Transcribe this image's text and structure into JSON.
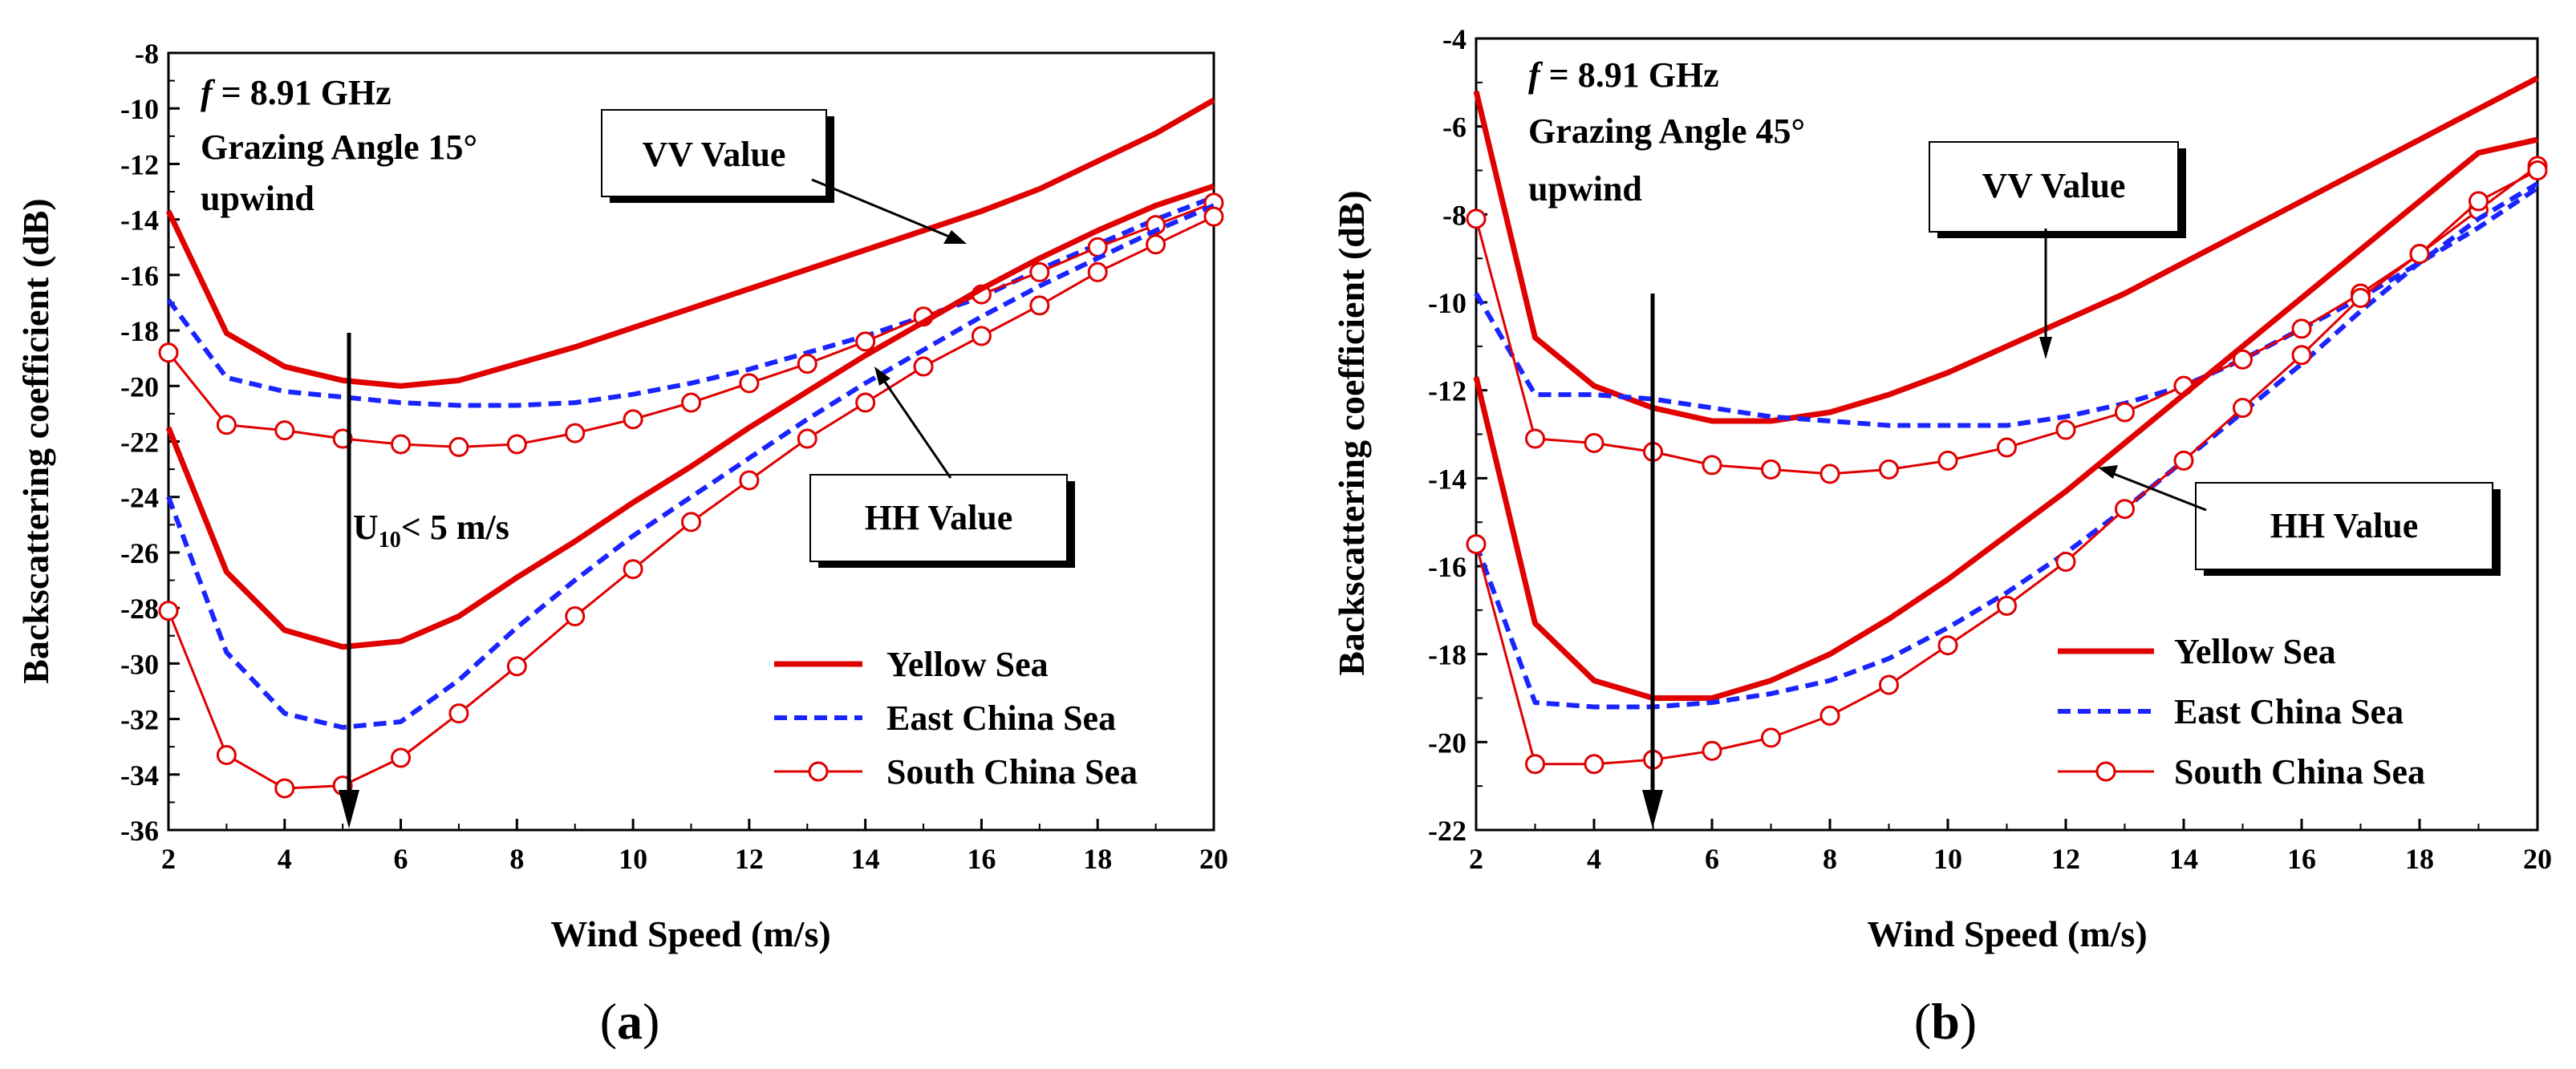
{
  "chart_data": [
    {
      "type": "line",
      "caption_prefix": "(",
      "caption_letter": "a",
      "caption_suffix": ")",
      "xlabel": "Wind Speed (m/s)",
      "ylabel": "Backscattering coefficient (dB)",
      "xlim": [
        2,
        20
      ],
      "ylim": [
        -36,
        -8
      ],
      "xticks": [
        2,
        4,
        6,
        8,
        10,
        12,
        14,
        16,
        18,
        20
      ],
      "yticks": [
        -8,
        -10,
        -12,
        -14,
        -16,
        -18,
        -20,
        -22,
        -24,
        -26,
        -28,
        -30,
        -32,
        -34,
        -36
      ],
      "annotations": {
        "freq_var": "f",
        "freq_text": " = 8.91 GHz",
        "angle": "Grazing Angle 15°",
        "dir": "upwind",
        "vv": "VV Value",
        "hh": "HH Value",
        "u_main": "U",
        "u_sub": "10",
        "u_rest": "< 5 m/s"
      },
      "legend": [
        "Yellow Sea",
        "East China Sea",
        "South China Sea"
      ],
      "x": [
        2,
        3,
        4,
        5,
        6,
        7,
        8,
        9,
        10,
        11,
        12,
        13,
        14,
        15,
        16,
        17,
        18,
        19,
        20
      ],
      "series": [
        {
          "name": "Yellow Sea VV",
          "style": "solid",
          "values": [
            -13.7,
            -18.1,
            -19.3,
            -19.8,
            -20.0,
            -19.8,
            -19.2,
            -18.6,
            -17.9,
            -17.2,
            -16.5,
            -15.8,
            -15.1,
            -14.4,
            -13.7,
            -12.9,
            -11.9,
            -10.9,
            -9.7
          ]
        },
        {
          "name": "East China Sea VV",
          "style": "dash",
          "values": [
            -16.9,
            -19.7,
            -20.2,
            -20.4,
            -20.6,
            -20.7,
            -20.7,
            -20.6,
            -20.3,
            -19.9,
            -19.4,
            -18.8,
            -18.2,
            -17.5,
            -16.8,
            -15.8,
            -14.9,
            -14.0,
            -13.2
          ]
        },
        {
          "name": "South China Sea VV",
          "style": "marker",
          "values": [
            -18.8,
            -21.4,
            -21.6,
            -21.9,
            -22.1,
            -22.2,
            -22.1,
            -21.7,
            -21.2,
            -20.6,
            -19.9,
            -19.2,
            -18.4,
            -17.5,
            -16.7,
            -15.9,
            -15.0,
            -14.2,
            -13.4
          ]
        },
        {
          "name": "Yellow Sea HH",
          "style": "solid",
          "values": [
            -21.5,
            -26.7,
            -28.8,
            -29.4,
            -29.2,
            -28.3,
            -26.9,
            -25.6,
            -24.2,
            -22.9,
            -21.5,
            -20.2,
            -18.9,
            -17.7,
            -16.5,
            -15.4,
            -14.4,
            -13.5,
            -12.8
          ]
        },
        {
          "name": "East China Sea HH",
          "style": "dash",
          "values": [
            -24.0,
            -29.6,
            -31.8,
            -32.3,
            -32.1,
            -30.6,
            -28.7,
            -27.0,
            -25.4,
            -24.0,
            -22.6,
            -21.2,
            -19.9,
            -18.7,
            -17.5,
            -16.4,
            -15.4,
            -14.4,
            -13.5
          ]
        },
        {
          "name": "South China Sea HH",
          "style": "marker",
          "values": [
            -28.1,
            -33.3,
            -34.5,
            -34.4,
            -33.4,
            -31.8,
            -30.1,
            -28.3,
            -26.6,
            -24.9,
            -23.4,
            -21.9,
            -20.6,
            -19.3,
            -18.2,
            -17.1,
            -15.9,
            -14.9,
            -13.9
          ]
        }
      ]
    },
    {
      "type": "line",
      "caption_prefix": "(",
      "caption_letter": "b",
      "caption_suffix": ")",
      "xlabel": "Wind Speed (m/s)",
      "ylabel": "Backscattering coefficient (dB)",
      "xlim": [
        2,
        20
      ],
      "ylim": [
        -22,
        -4
      ],
      "xticks": [
        2,
        4,
        6,
        8,
        10,
        12,
        14,
        16,
        18,
        20
      ],
      "yticks": [
        -4,
        -6,
        -8,
        -10,
        -12,
        -14,
        -16,
        -18,
        -20,
        -22
      ],
      "annotations": {
        "freq_var": "f",
        "freq_text": " = 8.91 GHz",
        "angle": "Grazing Angle 45°",
        "dir": "upwind",
        "vv": "VV Value",
        "hh": "HH Value"
      },
      "legend": [
        "Yellow Sea",
        "East China Sea",
        "South China Sea"
      ],
      "x": [
        2,
        3,
        4,
        5,
        6,
        7,
        8,
        9,
        10,
        11,
        12,
        13,
        14,
        15,
        16,
        17,
        18,
        19,
        20
      ],
      "series": [
        {
          "name": "Yellow Sea VV",
          "style": "solid",
          "values": [
            -5.2,
            -10.8,
            -11.9,
            -12.4,
            -12.7,
            -12.7,
            -12.5,
            -12.1,
            -11.6,
            -11.0,
            -10.4,
            -9.8,
            -9.1,
            -8.4,
            -7.7,
            -7.0,
            -6.3,
            -5.6,
            -4.9
          ]
        },
        {
          "name": "East China Sea VV",
          "style": "dash",
          "values": [
            -9.8,
            -12.1,
            -12.1,
            -12.2,
            -12.4,
            -12.6,
            -12.7,
            -12.8,
            -12.8,
            -12.8,
            -12.6,
            -12.3,
            -11.9,
            -11.3,
            -10.6,
            -9.9,
            -9.1,
            -8.3,
            -7.4
          ]
        },
        {
          "name": "South China Sea VV",
          "style": "marker",
          "values": [
            -8.1,
            -13.1,
            -13.2,
            -13.4,
            -13.7,
            -13.8,
            -13.9,
            -13.8,
            -13.6,
            -13.3,
            -12.9,
            -12.5,
            -11.9,
            -11.3,
            -10.6,
            -9.8,
            -8.9,
            -7.9,
            -6.9
          ]
        },
        {
          "name": "Yellow Sea HH",
          "style": "solid",
          "values": [
            -11.7,
            -17.3,
            -18.6,
            -19.0,
            -19.0,
            -18.6,
            -18.0,
            -17.2,
            -16.3,
            -15.3,
            -14.3,
            -13.2,
            -12.1,
            -11.0,
            -9.9,
            -8.8,
            -7.7,
            -6.6,
            -6.3
          ]
        },
        {
          "name": "East China Sea HH",
          "style": "dash",
          "values": [
            -15.5,
            -19.1,
            -19.2,
            -19.2,
            -19.1,
            -18.9,
            -18.6,
            -18.1,
            -17.4,
            -16.6,
            -15.7,
            -14.7,
            -13.6,
            -12.5,
            -11.4,
            -10.2,
            -9.1,
            -8.1,
            -7.3
          ]
        },
        {
          "name": "South China Sea HH",
          "style": "marker",
          "values": [
            -15.5,
            -20.5,
            -20.5,
            -20.4,
            -20.2,
            -19.9,
            -19.4,
            -18.7,
            -17.8,
            -16.9,
            -15.9,
            -14.7,
            -13.6,
            -12.4,
            -11.2,
            -9.9,
            -8.9,
            -7.7,
            -7.0
          ]
        }
      ]
    }
  ],
  "colors": {
    "red": "#e00000",
    "blue": "#1a24ff",
    "black": "#000000"
  }
}
